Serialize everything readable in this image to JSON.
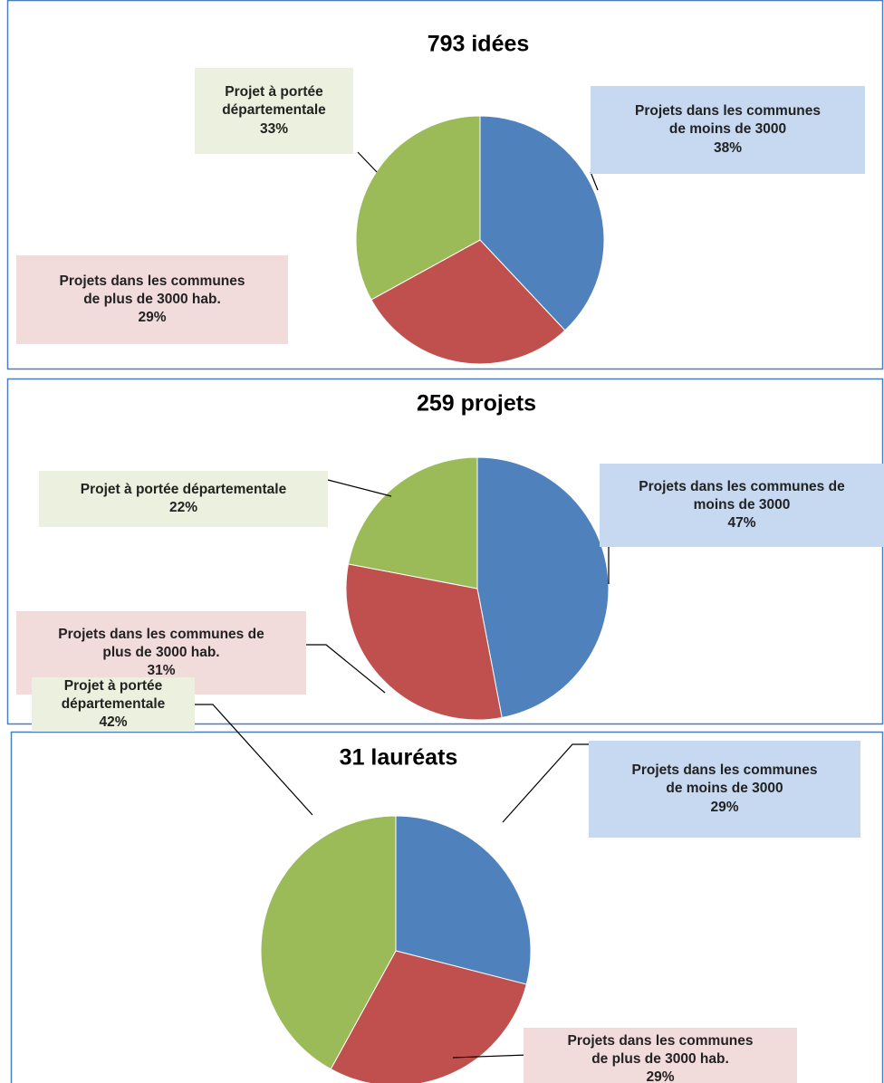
{
  "chart_data": [
    {
      "type": "pie",
      "title": "793 idées",
      "categories": [
        "Projets dans les communes de moins de 3000",
        "Projets dans les communes de plus de 3000 hab.",
        "Projet à portée départementale"
      ],
      "values": [
        38,
        29,
        33
      ],
      "value_labels": [
        "38%",
        "29%",
        "33%"
      ],
      "colors": [
        "#4f81bd",
        "#c0504d",
        "#9bbb59"
      ]
    },
    {
      "type": "pie",
      "title": "259 projets",
      "categories": [
        "Projets dans les communes de moins de 3000",
        "Projets dans les communes de plus de 3000 hab.",
        "Projet à portée départementale"
      ],
      "values": [
        47,
        31,
        22
      ],
      "value_labels": [
        "47%",
        "31%",
        "22%"
      ],
      "colors": [
        "#4f81bd",
        "#c0504d",
        "#9bbb59"
      ]
    },
    {
      "type": "pie",
      "title": "31 lauréats",
      "categories": [
        "Projets dans les communes de moins de 3000",
        "Projets dans les communes de plus de 3000 hab.",
        "Projet à portée départementale"
      ],
      "values": [
        29,
        29,
        42
      ],
      "value_labels": [
        "29%",
        "29%",
        "42%"
      ],
      "colors": [
        "#4f81bd",
        "#c0504d",
        "#9bbb59"
      ]
    }
  ]
}
